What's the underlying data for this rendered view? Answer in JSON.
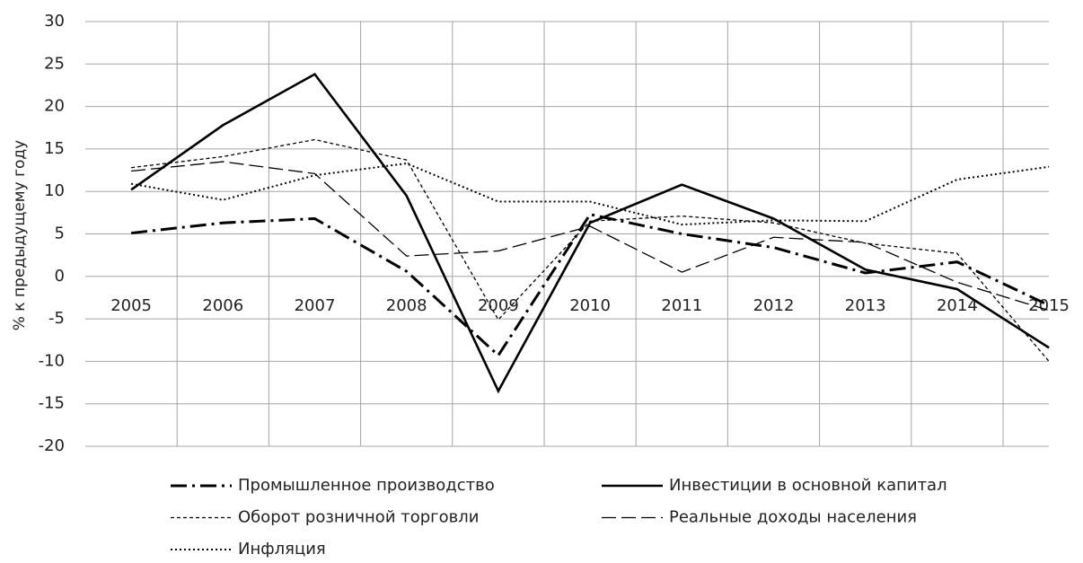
{
  "chart_data": {
    "type": "line",
    "y_label": "% к предыдущему году",
    "categories": [
      "2005",
      "2006",
      "2007",
      "2008",
      "2009",
      "2010",
      "2011",
      "2012",
      "2013",
      "2014",
      "2015"
    ],
    "series": [
      {
        "name": "Промышленное производство",
        "color": "#000000",
        "style": "dash-dot",
        "values": [
          5.1,
          6.3,
          6.8,
          0.6,
          -9.3,
          7.3,
          5.0,
          3.4,
          0.4,
          1.7,
          -3.4
        ]
      },
      {
        "name": "Инвестиции в основной капитал",
        "color": "#000000",
        "style": "solid",
        "values": [
          10.2,
          17.8,
          23.8,
          9.5,
          -13.5,
          6.3,
          10.8,
          6.8,
          0.8,
          -1.5,
          -8.4
        ]
      },
      {
        "name": "Оборот розничной торговли",
        "color": "#000000",
        "style": "dashed",
        "values": [
          12.8,
          14.1,
          16.1,
          13.7,
          -5.1,
          6.5,
          7.1,
          6.3,
          3.9,
          2.7,
          -10.0
        ]
      },
      {
        "name": "Реальные доходы населения",
        "color": "#000000",
        "style": "long-dash",
        "values": [
          12.4,
          13.5,
          12.1,
          2.4,
          3.0,
          5.9,
          0.5,
          4.6,
          4.0,
          -0.7,
          -4.0
        ]
      },
      {
        "name": "Инфляция",
        "color": "#000000",
        "style": "dotted",
        "values": [
          10.9,
          9.0,
          11.9,
          13.3,
          8.8,
          8.8,
          6.1,
          6.6,
          6.5,
          11.4,
          12.9
        ]
      }
    ],
    "ylim": [
      -20,
      30
    ],
    "yticks": [
      -20,
      -15,
      -10,
      -5,
      0,
      5,
      10,
      15,
      20,
      25,
      30
    ],
    "grid": true,
    "legend": "bottom"
  }
}
